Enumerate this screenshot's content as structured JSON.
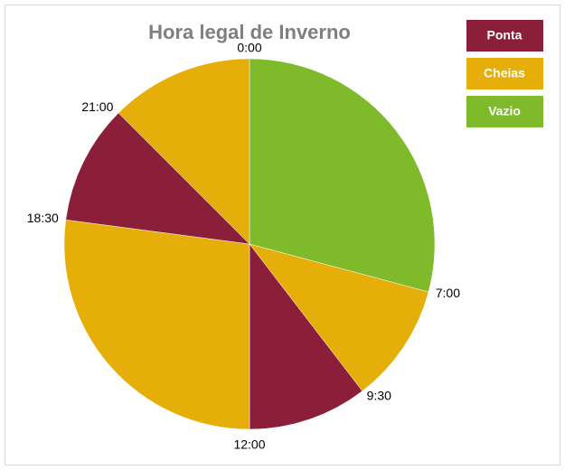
{
  "chart_data": {
    "type": "pie",
    "title": "Hora legal de Inverno",
    "legend": [
      {
        "name": "Ponta",
        "color": "#8b1f3a"
      },
      {
        "name": "Cheias",
        "color": "#e6ae08"
      },
      {
        "name": "Vazio",
        "color": "#7fba2a"
      }
    ],
    "categories": [
      "0:00",
      "7:00",
      "9:30",
      "12:00",
      "18:30",
      "21:00"
    ],
    "tariffs": [
      "Vazio",
      "Cheias",
      "Ponta",
      "Cheias",
      "Ponta",
      "Cheias"
    ],
    "values": [
      7,
      2.5,
      2.5,
      6.5,
      2.5,
      3
    ]
  }
}
